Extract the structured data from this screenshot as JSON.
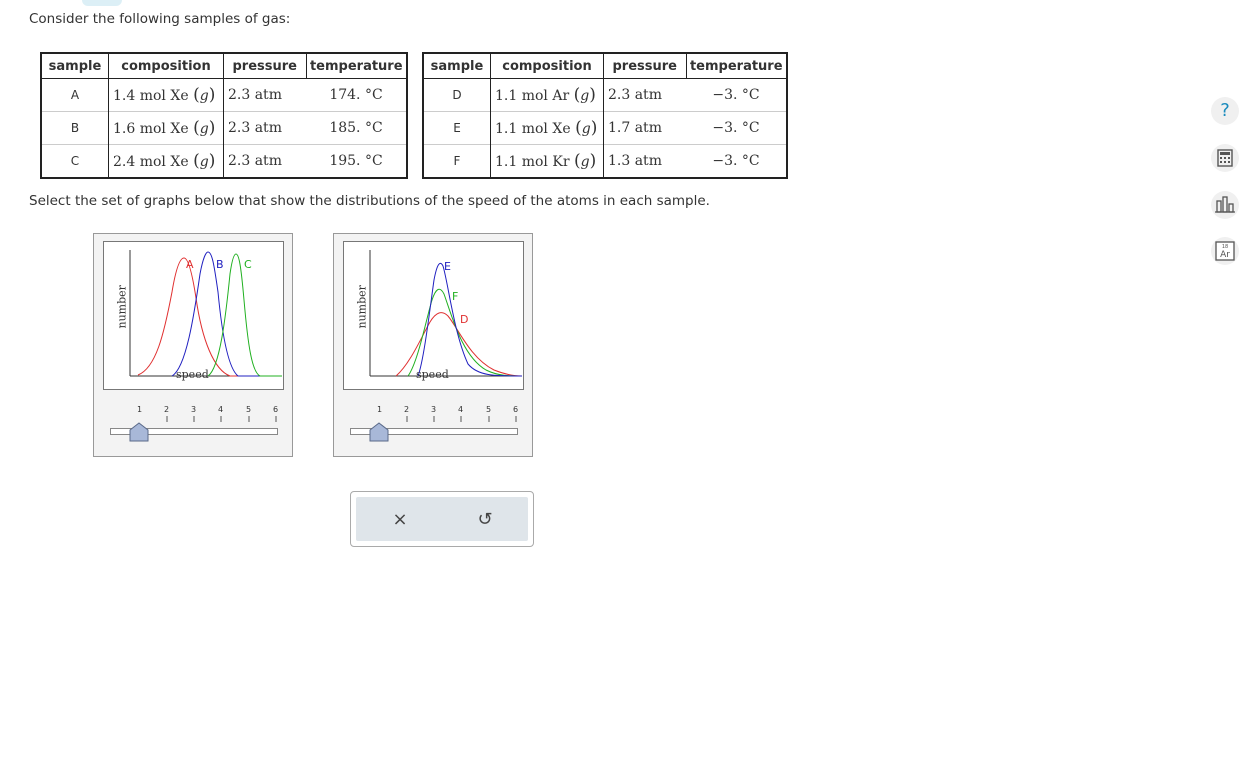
{
  "question": {
    "intro": "Consider the following samples of gas:",
    "prompt": "Select the set of graphs below that show the distributions of the speed of the atoms in each sample."
  },
  "tables": [
    {
      "headers": [
        "sample",
        "composition",
        "pressure",
        "temperature"
      ],
      "rows": [
        {
          "sample": "A",
          "amount": "1.4 mol",
          "gas": "Xe",
          "phase": "g",
          "pressure": "2.3 atm",
          "temperature": "174. °C"
        },
        {
          "sample": "B",
          "amount": "1.6 mol",
          "gas": "Xe",
          "phase": "g",
          "pressure": "2.3 atm",
          "temperature": "185. °C"
        },
        {
          "sample": "C",
          "amount": "2.4 mol",
          "gas": "Xe",
          "phase": "g",
          "pressure": "2.3 atm",
          "temperature": "195. °C"
        }
      ]
    },
    {
      "headers": [
        "sample",
        "composition",
        "pressure",
        "temperature"
      ],
      "rows": [
        {
          "sample": "D",
          "amount": "1.1 mol",
          "gas": "Ar",
          "phase": "g",
          "pressure": "2.3 atm",
          "temperature": "−3. °C"
        },
        {
          "sample": "E",
          "amount": "1.1 mol",
          "gas": "Xe",
          "phase": "g",
          "pressure": "1.7 atm",
          "temperature": "−3. °C"
        },
        {
          "sample": "F",
          "amount": "1.1 mol",
          "gas": "Kr",
          "phase": "g",
          "pressure": "1.3 atm",
          "temperature": "−3. °C"
        }
      ]
    }
  ],
  "graphs": [
    {
      "ylabel": "number",
      "xlabel": "speed",
      "curve_labels": [
        {
          "text": "A",
          "color": "#e03030"
        },
        {
          "text": "B",
          "color": "#2020c0"
        },
        {
          "text": "C",
          "color": "#20b020"
        }
      ],
      "slider": {
        "ticks": [
          "1",
          "2",
          "3",
          "4",
          "5",
          "6"
        ],
        "value": 1
      }
    },
    {
      "ylabel": "number",
      "xlabel": "speed",
      "curve_labels": [
        {
          "text": "E",
          "color": "#2020c0"
        },
        {
          "text": "F",
          "color": "#20b020"
        },
        {
          "text": "D",
          "color": "#e03030"
        }
      ],
      "slider": {
        "ticks": [
          "1",
          "2",
          "3",
          "4",
          "5",
          "6"
        ],
        "value": 1
      }
    }
  ],
  "buttons": {
    "clear": "×",
    "reset": "↺"
  },
  "sidebar": {
    "help": "?",
    "periodic_symbol": "Ar",
    "periodic_number": "18"
  },
  "colors": {
    "accent": "#1a8bbd",
    "red": "#e03030",
    "blue": "#2020c0",
    "green": "#20b020"
  }
}
